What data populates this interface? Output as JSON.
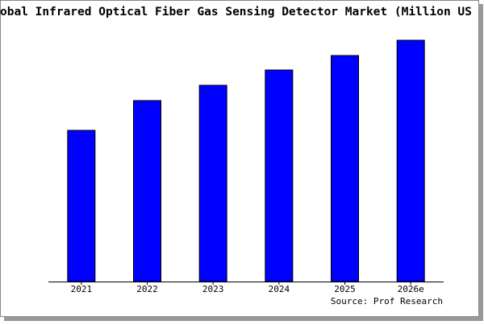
{
  "chart_data": {
    "type": "bar",
    "title": "obal Infrared Optical Fiber Gas Sensing Detector Market (Million US",
    "categories": [
      "2021",
      "2022",
      "2023",
      "2024",
      "2025",
      "2026e"
    ],
    "values": [
      188,
      225,
      244,
      263,
      281,
      300
    ],
    "color": "#0000ff",
    "ylim": [
      0,
      300
    ],
    "source": "Source: Prof Research"
  }
}
